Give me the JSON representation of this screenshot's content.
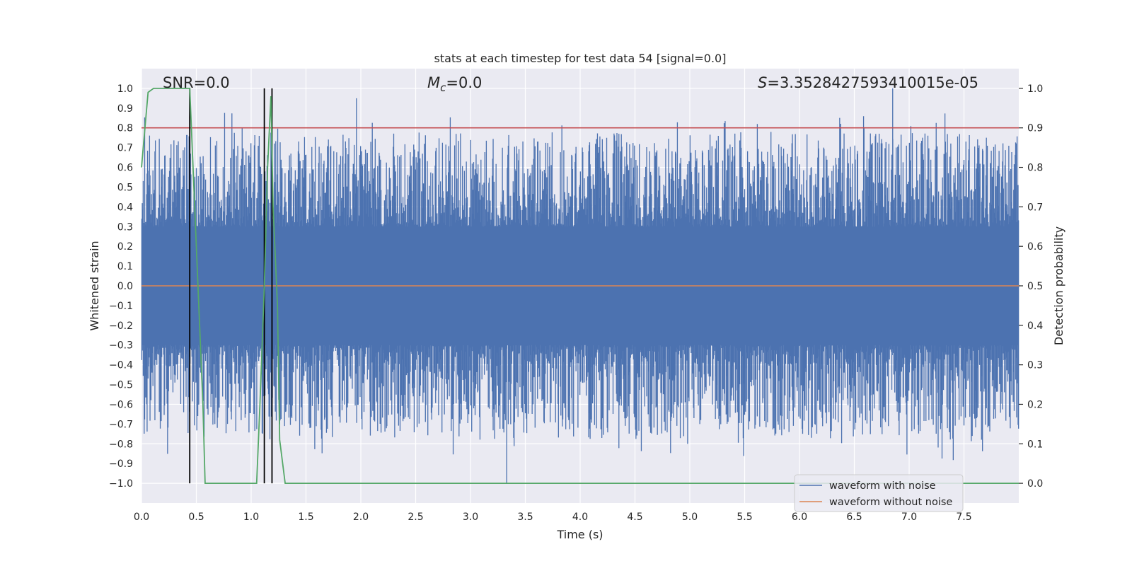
{
  "chart_data": {
    "type": "line",
    "title": "stats at each timestep for test data 54 [signal=0.0]",
    "xlabel": "Time (s)",
    "ylabel_left": "Whitened strain",
    "ylabel_right": "Detection probability",
    "xlim": [
      0.0,
      8.0
    ],
    "ylim_left": [
      -1.1,
      1.1
    ],
    "ylim_right": [
      -0.05,
      1.05
    ],
    "xticks": [
      "0.0",
      "0.5",
      "1.0",
      "1.5",
      "2.0",
      "2.5",
      "3.0",
      "3.5",
      "4.0",
      "4.5",
      "5.0",
      "5.5",
      "6.0",
      "6.5",
      "7.0",
      "7.5"
    ],
    "xtick_values": [
      0.0,
      0.5,
      1.0,
      1.5,
      2.0,
      2.5,
      3.0,
      3.5,
      4.0,
      4.5,
      5.0,
      5.5,
      6.0,
      6.5,
      7.0,
      7.5
    ],
    "yticks_left": [
      "1.0",
      "0.9",
      "0.8",
      "0.7",
      "0.6",
      "0.5",
      "0.4",
      "0.3",
      "0.2",
      "0.1",
      "0.0",
      "−0.1",
      "−0.2",
      "−0.3",
      "−0.4",
      "−0.5",
      "−0.6",
      "−0.7",
      "−0.8",
      "−0.9",
      "−1.0"
    ],
    "ytick_values_left": [
      1.0,
      0.9,
      0.8,
      0.7,
      0.6,
      0.5,
      0.4,
      0.3,
      0.2,
      0.1,
      0.0,
      -0.1,
      -0.2,
      -0.3,
      -0.4,
      -0.5,
      -0.6,
      -0.7,
      -0.8,
      -0.9,
      -1.0
    ],
    "yticks_right": [
      "1.0",
      "0.9",
      "0.8",
      "0.7",
      "0.6",
      "0.5",
      "0.4",
      "0.3",
      "0.2",
      "0.1",
      "0.0"
    ],
    "ytick_values_right": [
      1.0,
      0.9,
      0.8,
      0.7,
      0.6,
      0.5,
      0.4,
      0.3,
      0.2,
      0.1,
      0.0
    ],
    "annotations": {
      "snr": "SNR=0.0",
      "mc_symbol": "M",
      "mc_sub": "c",
      "mc_value": "=0.0",
      "s_symbol": "S",
      "s_value": "=3.3528427593410015e-05"
    },
    "series": [
      {
        "name": "waveform with noise",
        "color": "#4c72b0",
        "description": "whitened strain noise, roughly uniform amplitude between about -1.0 and 1.0",
        "sample_peaks": [
          {
            "x": 1.96,
            "y": 0.95
          },
          {
            "x": 3.33,
            "y": -1.0
          },
          {
            "x": 6.85,
            "y": 1.0
          },
          {
            "x": 5.1,
            "y": -0.68
          }
        ]
      },
      {
        "name": "waveform without noise",
        "color": "#dd8452",
        "values_constant": 0.0
      },
      {
        "name": "detection probability",
        "axis": "right",
        "color": "#55a868",
        "x": [
          0.0,
          0.06,
          0.11,
          0.2,
          0.3,
          0.4,
          0.44,
          0.5,
          0.56,
          0.58,
          0.7,
          0.9,
          1.05,
          1.08,
          1.12,
          1.15,
          1.18,
          1.2,
          1.24,
          1.26,
          1.31,
          1.5,
          3.0,
          5.0,
          5.07,
          6.5,
          8.0
        ],
        "values": [
          0.8,
          0.99,
          1.0,
          1.0,
          1.0,
          1.0,
          1.0,
          0.6,
          0.2,
          0.0,
          0.0,
          0.0,
          0.0,
          0.2,
          0.5,
          0.8,
          0.98,
          0.7,
          0.45,
          0.11,
          0.0,
          0.0,
          0.0,
          0.0,
          0.0,
          0.0,
          0.0
        ]
      }
    ],
    "threshold": {
      "axis": "right",
      "value": 0.9,
      "color": "#c44e52"
    },
    "vertical_lines": [
      0.44,
      1.12,
      1.19
    ],
    "vertical_lines_color": "#000000",
    "legend": {
      "location": "lower-right",
      "entries": [
        {
          "label": "waveform with noise",
          "color": "#4c72b0"
        },
        {
          "label": "waveform without noise",
          "color": "#dd8452"
        }
      ]
    },
    "colors": {
      "axes_bg": "#eaeaf2",
      "grid": "#ffffff",
      "text": "#262626"
    }
  }
}
